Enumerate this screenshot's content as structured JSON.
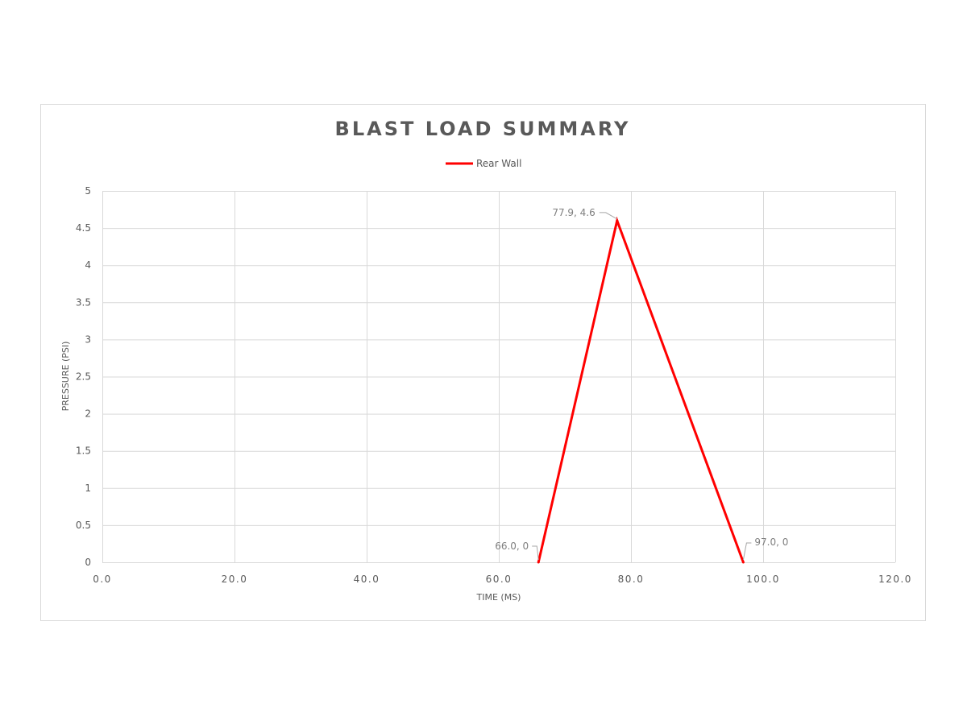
{
  "chart_data": {
    "type": "line",
    "title": "BLAST LOAD SUMMARY",
    "xlabel": "TIME (MS)",
    "ylabel": "PRESSURE (PSI)",
    "xlim": [
      0,
      120
    ],
    "ylim": [
      0,
      5
    ],
    "xticks": [
      0,
      20,
      40,
      60,
      80,
      100,
      120
    ],
    "xtick_labels": [
      "0.0",
      "20.0",
      "40.0",
      "60.0",
      "80.0",
      "100.0",
      "120.0"
    ],
    "yticks": [
      0,
      0.5,
      1,
      1.5,
      2,
      2.5,
      3,
      3.5,
      4,
      4.5,
      5
    ],
    "ytick_labels": [
      "0",
      "0.5",
      "1",
      "1.5",
      "2",
      "2.5",
      "3",
      "3.5",
      "4",
      "4.5",
      "5"
    ],
    "grid": true,
    "legend_position": "top",
    "series": [
      {
        "name": "Rear Wall",
        "color": "#ff0000",
        "x": [
          66.0,
          77.9,
          97.0
        ],
        "y": [
          0,
          4.6,
          0
        ],
        "data_labels": [
          "66.0, 0",
          "77.9, 4.6",
          "97.0, 0"
        ]
      }
    ]
  }
}
